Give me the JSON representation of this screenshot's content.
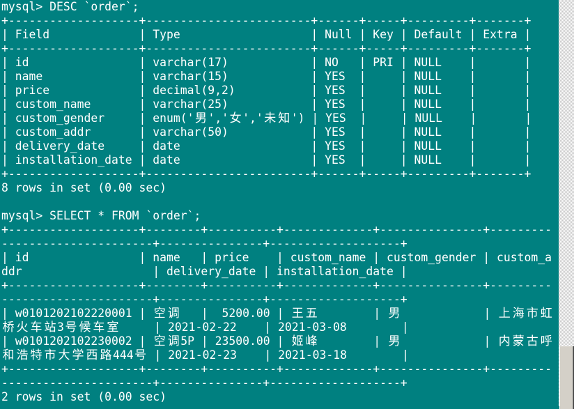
{
  "terminal": {
    "background": "#008080",
    "foreground": "#ffffff",
    "wrap_columns": 80
  },
  "session": [
    {
      "type": "prompt",
      "text": "mysql> DESC `order`;"
    },
    {
      "type": "table",
      "columns": [
        "Field",
        "Type",
        "Null",
        "Key",
        "Default",
        "Extra"
      ],
      "align": [
        "left",
        "left",
        "left",
        "left",
        "left",
        "left"
      ],
      "rows": [
        [
          "id",
          "varchar(17)",
          "NO",
          "PRI",
          "NULL",
          ""
        ],
        [
          "name",
          "varchar(15)",
          "YES",
          "",
          "NULL",
          ""
        ],
        [
          "price",
          "decimal(9,2)",
          "YES",
          "",
          "NULL",
          ""
        ],
        [
          "custom_name",
          "varchar(25)",
          "YES",
          "",
          "NULL",
          ""
        ],
        [
          "custom_gender",
          "enum('男','女','未知')",
          "YES",
          "",
          "NULL",
          ""
        ],
        [
          "custom_addr",
          "varchar(50)",
          "YES",
          "",
          "NULL",
          ""
        ],
        [
          "delivery_date",
          "date",
          "YES",
          "",
          "NULL",
          ""
        ],
        [
          "installation_date",
          "date",
          "YES",
          "",
          "NULL",
          ""
        ]
      ]
    },
    {
      "type": "status",
      "text": "8 rows in set (0.00 sec)"
    },
    {
      "type": "blank",
      "text": ""
    },
    {
      "type": "prompt",
      "text": "mysql> SELECT * FROM `order`;"
    },
    {
      "type": "table",
      "columns": [
        "id",
        "name",
        "price",
        "custom_name",
        "custom_gender",
        "custom_addr",
        "delivery_date",
        "installation_date"
      ],
      "align": [
        "left",
        "left",
        "right",
        "left",
        "left",
        "left",
        "left",
        "left"
      ],
      "rows": [
        [
          "w0101202102220001",
          "空调",
          "5200.00",
          "王五",
          "男",
          "上海市虹桥火车站3号候车室",
          "2021-02-22",
          "2021-03-08"
        ],
        [
          "w0101202102230002",
          "空调5P",
          "23500.00",
          "姬峰",
          "男",
          "内蒙古呼和浩特市大学西路444号",
          "2021-02-23",
          "2021-03-18"
        ]
      ]
    },
    {
      "type": "status",
      "text": "2 rows in set (0.00 sec)"
    }
  ],
  "scrollbar": {
    "position_fraction": 1.0
  }
}
